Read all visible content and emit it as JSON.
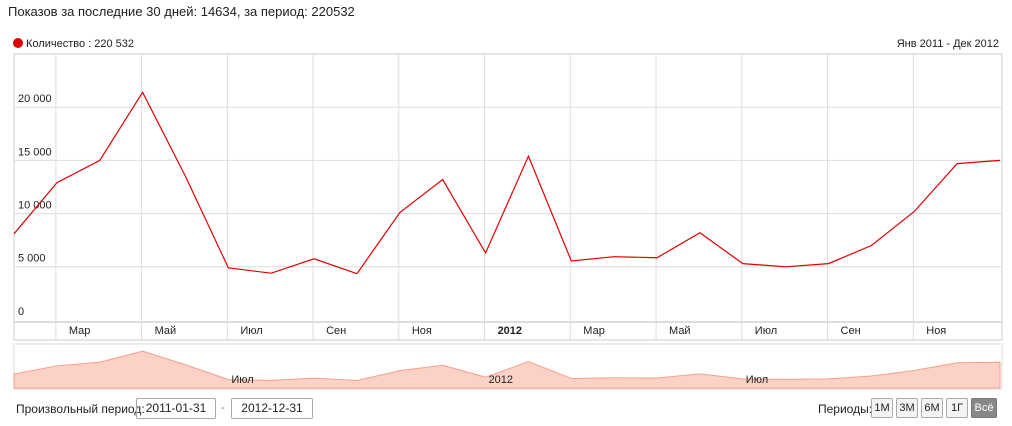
{
  "header": {
    "title": "Показов за последние 30 дней: 14634, за период: 220532"
  },
  "chart_data": {
    "type": "line",
    "range_label": "Янв 2011 - Дек 2012",
    "categories": [
      null,
      "Мар",
      null,
      "Май",
      null,
      "Июл",
      null,
      "Сен",
      null,
      "Ноя",
      null,
      "2012",
      null,
      "Мар",
      null,
      "Май",
      null,
      "Июл",
      null,
      "Сен",
      null,
      "Ноя",
      null,
      null
    ],
    "series": [
      {
        "name": "Количество : 220 532",
        "color": "#e00000",
        "values": [
          8100,
          12900,
          15000,
          21400,
          13500,
          4900,
          4400,
          5750,
          4350,
          10100,
          13200,
          6300,
          15400,
          5550,
          5950,
          5850,
          8200,
          5300,
          5000,
          5300,
          7000,
          10200,
          14700,
          15000
        ]
      }
    ],
    "ylim": [
      0,
      25000
    ],
    "yticks": [
      0,
      {
        "value": 5000,
        "label": "5 000"
      },
      {
        "value": 10000,
        "label": "10 000"
      },
      {
        "value": 15000,
        "label": "15 000"
      },
      {
        "value": 20000,
        "label": "20 000"
      }
    ],
    "grid": true
  },
  "navigator": {
    "labels": [
      "Июл",
      "2012",
      "Июл"
    ],
    "area_color": "#fcd2c6",
    "line_color": "#f4a08c"
  },
  "controls": {
    "custom_label": "Произвольный период:",
    "date_from": "2011-01-31",
    "date_sep": "-",
    "date_to": "2012-12-31",
    "periods_label": "Периоды:",
    "periods": [
      "1М",
      "3М",
      "6М",
      "1Г",
      "Всё"
    ]
  }
}
